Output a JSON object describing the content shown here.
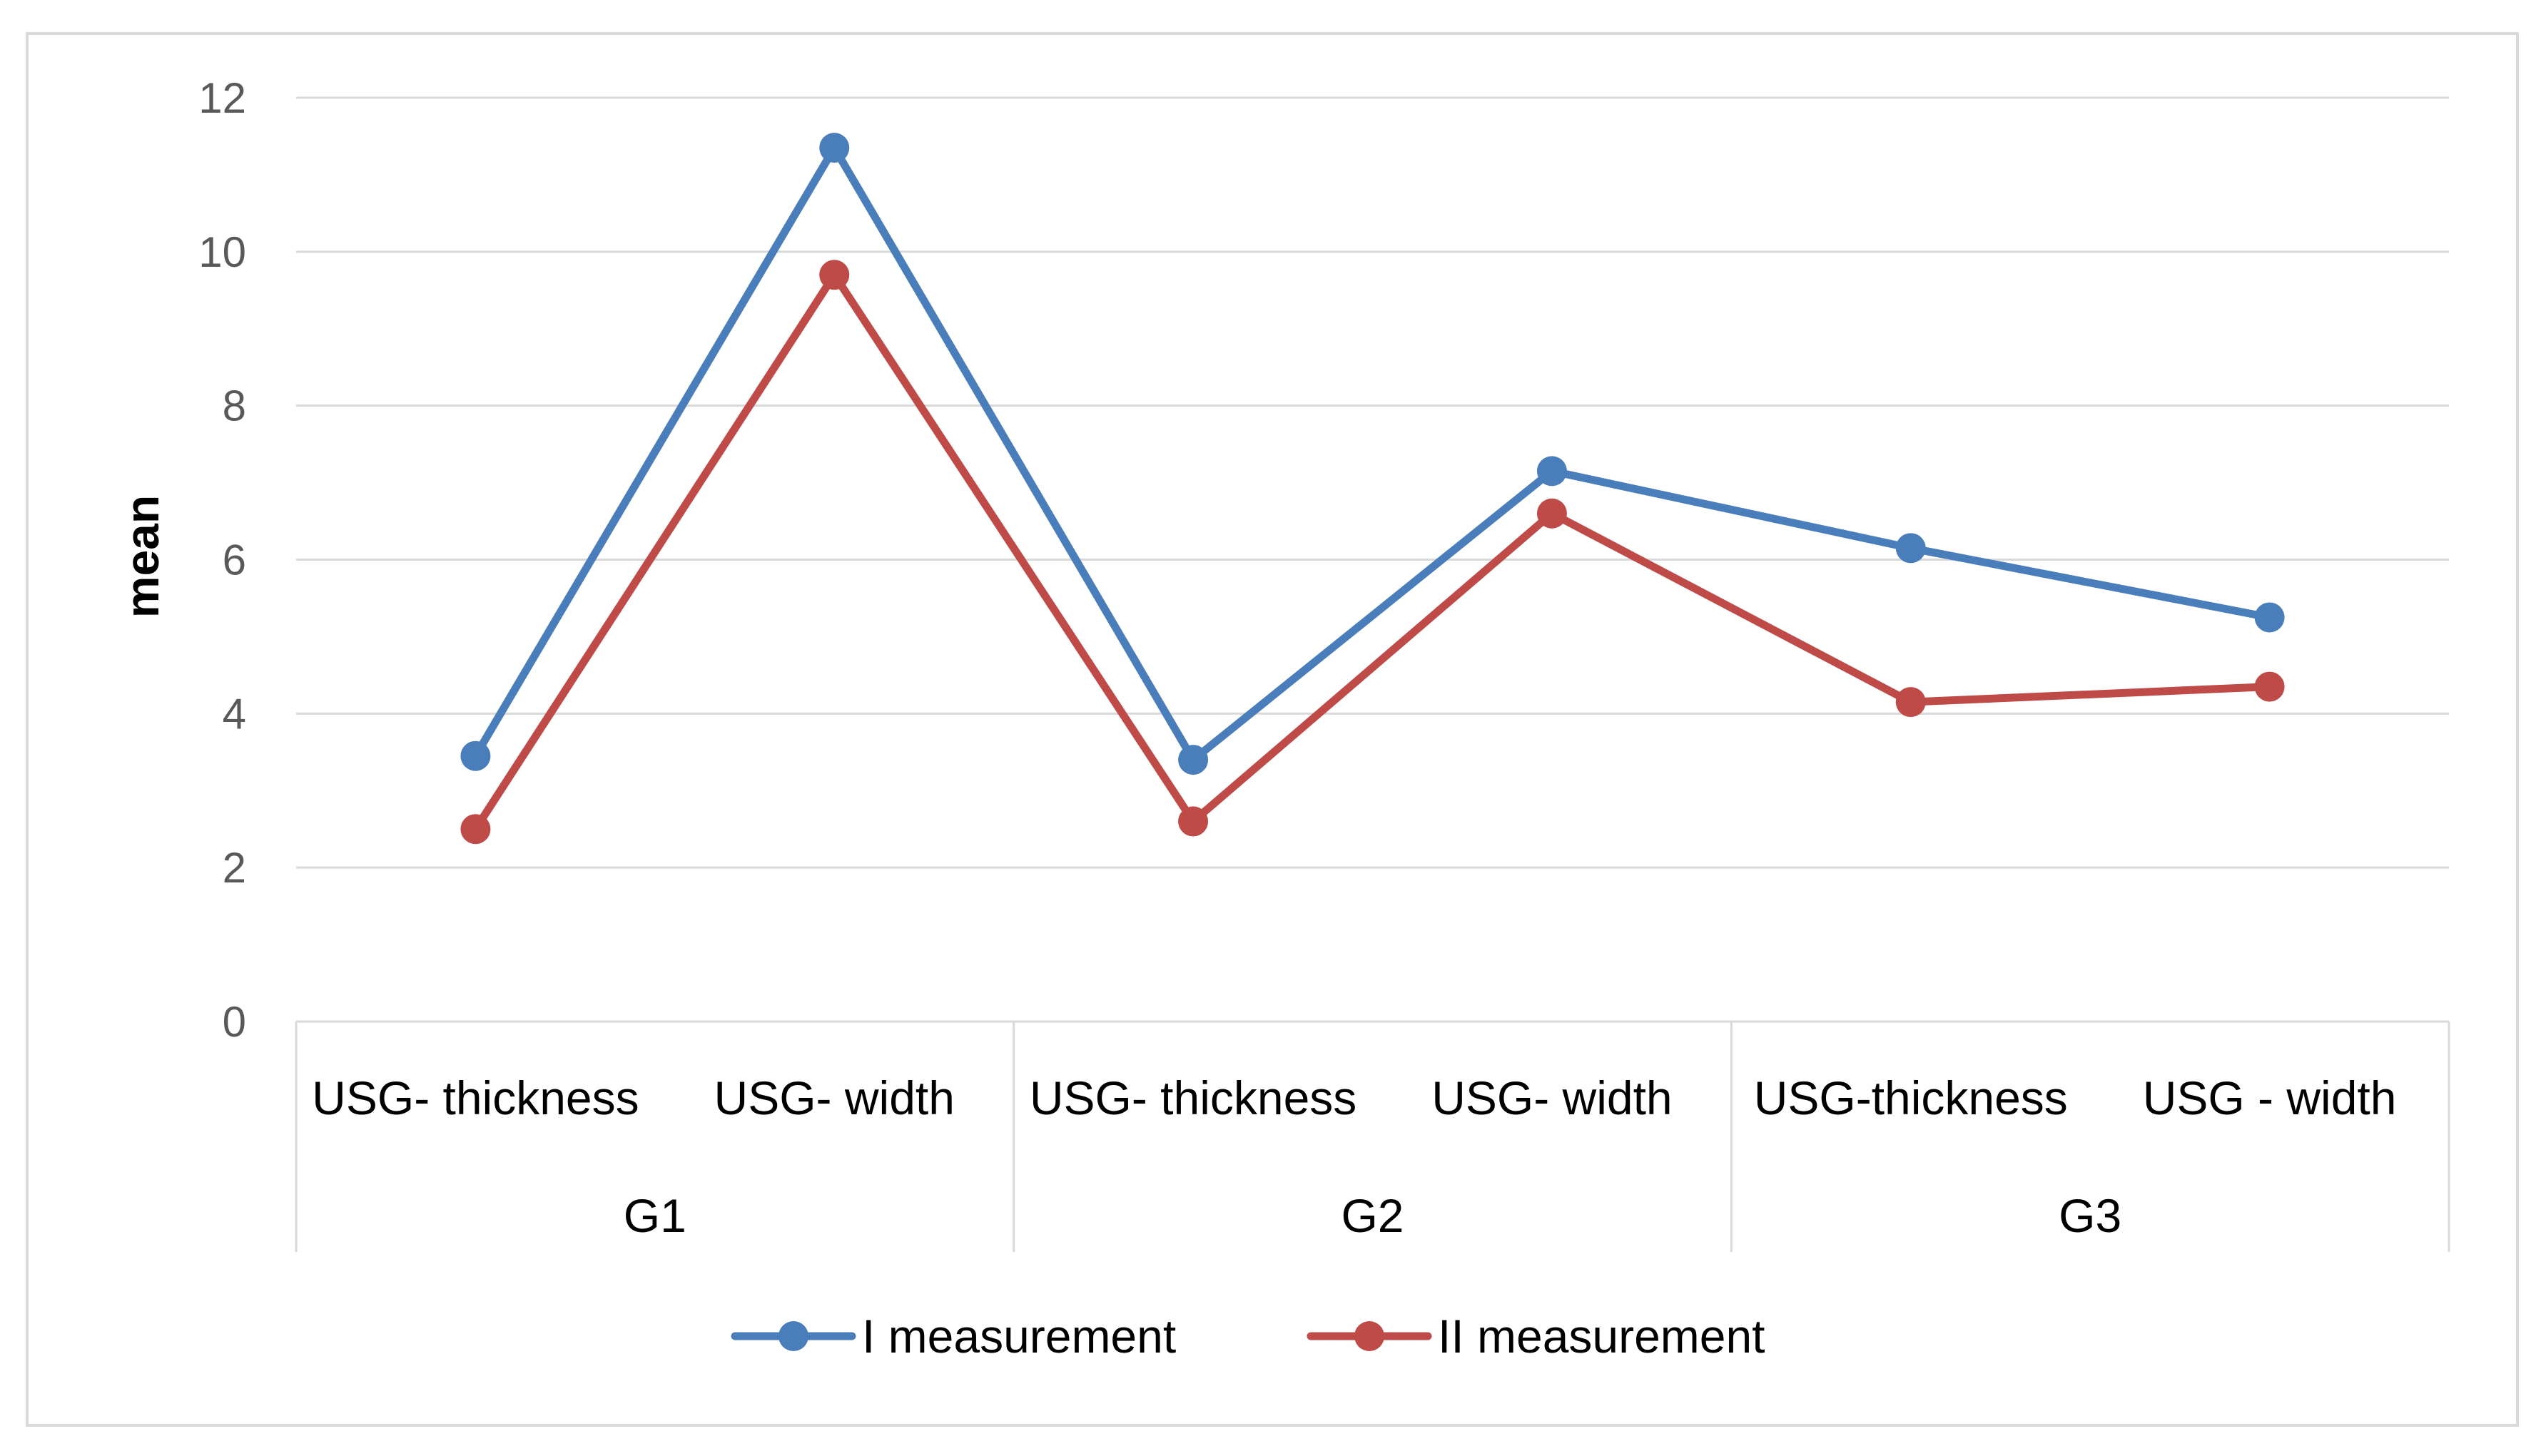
{
  "chart_data": {
    "type": "line",
    "title": "",
    "xlabel": "",
    "ylabel": "mean",
    "ylim": [
      0,
      12
    ],
    "y_ticks": [
      0,
      2,
      4,
      6,
      8,
      10,
      12
    ],
    "grid": "horizontal",
    "legend_position": "bottom",
    "categories": [
      "USG- thickness",
      "USG- width",
      "USG- thickness",
      "USG- width",
      "USG-thickness",
      "USG - width"
    ],
    "groups": [
      {
        "label": "G1",
        "span": 2
      },
      {
        "label": "G2",
        "span": 2
      },
      {
        "label": "G3",
        "span": 2
      }
    ],
    "series": [
      {
        "name": "I measurement",
        "color": "#4a7ebb",
        "values": [
          3.45,
          11.35,
          3.4,
          7.15,
          6.15,
          5.25
        ]
      },
      {
        "name": "II measurement",
        "color": "#be4b48",
        "values": [
          2.5,
          9.7,
          2.6,
          6.6,
          4.15,
          4.35
        ]
      }
    ]
  }
}
